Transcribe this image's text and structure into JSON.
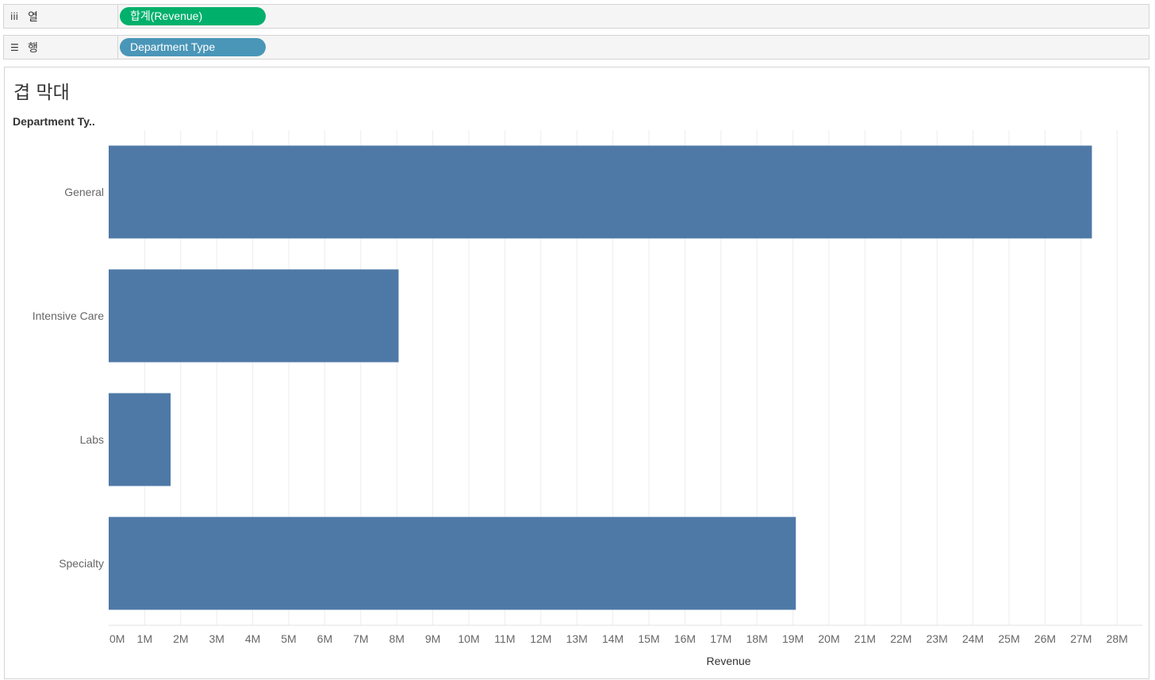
{
  "shelves": {
    "columns": {
      "label": "열",
      "icon": "columns-icon",
      "pill": "합계(Revenue)",
      "pill_color": "#00b06b"
    },
    "rows": {
      "label": "행",
      "icon": "rows-icon",
      "pill": "Department Type",
      "pill_color": "#4a96b8"
    }
  },
  "sheet": {
    "title": "겹 막대",
    "row_header": "Department Ty.."
  },
  "chart_data": {
    "type": "bar",
    "orientation": "horizontal",
    "categories": [
      "General",
      "Intensive Care",
      "Labs",
      "Specialty"
    ],
    "values": [
      27300000,
      8050000,
      1720000,
      19080000
    ],
    "xlabel": "Revenue",
    "ylabel": "Department Ty..",
    "xlim": [
      0,
      28700000
    ],
    "ticks": [
      "0M",
      "1M",
      "2M",
      "3M",
      "4M",
      "5M",
      "6M",
      "7M",
      "8M",
      "9M",
      "10M",
      "11M",
      "12M",
      "13M",
      "14M",
      "15M",
      "16M",
      "17M",
      "18M",
      "19M",
      "20M",
      "21M",
      "22M",
      "23M",
      "24M",
      "25M",
      "26M",
      "27M",
      "28M"
    ],
    "tick_values": [
      0,
      1000000,
      2000000,
      3000000,
      4000000,
      5000000,
      6000000,
      7000000,
      8000000,
      9000000,
      10000000,
      11000000,
      12000000,
      13000000,
      14000000,
      15000000,
      16000000,
      17000000,
      18000000,
      19000000,
      20000000,
      21000000,
      22000000,
      23000000,
      24000000,
      25000000,
      26000000,
      27000000,
      28000000
    ],
    "bar_color": "#4e79a7",
    "grid": true
  }
}
